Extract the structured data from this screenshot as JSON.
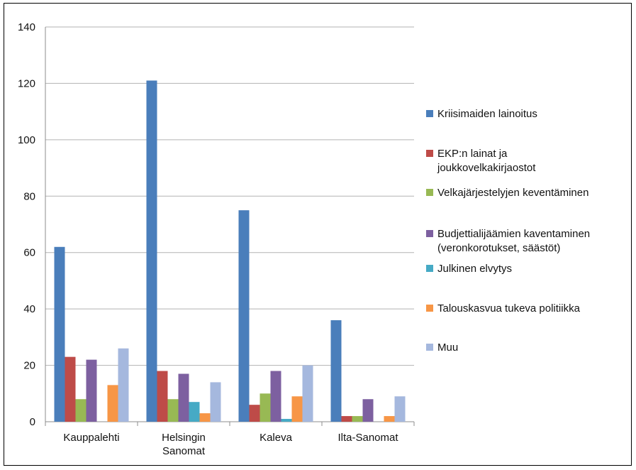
{
  "chart_data": {
    "type": "bar",
    "categories": [
      [
        "Kauppalehti"
      ],
      [
        "Helsingin",
        "Sanomat"
      ],
      [
        "Kaleva"
      ],
      [
        "Ilta-Sanomat"
      ]
    ],
    "ylim": [
      0,
      140
    ],
    "yticks": [
      0,
      20,
      40,
      60,
      80,
      100,
      120,
      140
    ],
    "grid": true,
    "legend_position": "right",
    "series": [
      {
        "name": [
          "Kriisimaiden lainoitus"
        ],
        "color": "#4a7ebb",
        "values": [
          62,
          121,
          75,
          36
        ]
      },
      {
        "name": [
          "EKP:n lainat ja",
          "joukkovelkakirjaostot"
        ],
        "color": "#be4b48",
        "values": [
          23,
          18,
          6,
          2
        ]
      },
      {
        "name": [
          "Velkajärjestelyjen keventäminen"
        ],
        "color": "#98b954",
        "values": [
          8,
          8,
          10,
          2
        ]
      },
      {
        "name": [
          "Budjettialijäämien kaventaminen",
          "(veronkorotukset, säästöt)"
        ],
        "color": "#7d60a0",
        "values": [
          22,
          17,
          18,
          8
        ]
      },
      {
        "name": [
          "Julkinen elvytys"
        ],
        "color": "#46aac5",
        "values": [
          0,
          7,
          1,
          0
        ]
      },
      {
        "name": [
          "Talouskasvua tukeva politiikka"
        ],
        "color": "#f79646",
        "values": [
          13,
          3,
          9,
          2
        ]
      },
      {
        "name": [
          "Muu"
        ],
        "color": "#a5b8de",
        "values": [
          26,
          14,
          20,
          9
        ]
      }
    ]
  }
}
